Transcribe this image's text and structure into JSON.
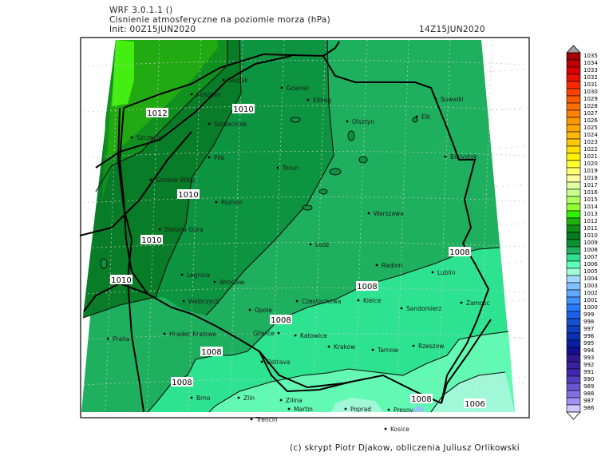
{
  "header": {
    "model": "WRF 3.0.1.1 ()",
    "title": "Cisnienie atmosferyczne na poziomie morza (hPa)",
    "init": "Init: 00Z15JUN2020",
    "valid_time": "14Z15JUN2020"
  },
  "footer": "(c) skrypt Piotr Djakow, obliczenia Juliusz Orlikowski",
  "map": {
    "field_colors": {
      "1013": "#44ee10",
      "1012": "#22aa12",
      "1011": "#10901e",
      "1010": "#087c26",
      "1009": "#0d9440",
      "1008": "#1eb05e",
      "1007": "#2ee38f",
      "1006": "#62f9b3",
      "1005": "#a0f8d8"
    },
    "contour_labels": [
      "1012",
      "1010",
      "1010",
      "1010",
      "1010",
      "1008",
      "1008",
      "1008",
      "1008",
      "1008",
      "1006",
      "1008"
    ],
    "cities": [
      "Slupsk",
      "Koszalin",
      "Szczecinek",
      "Szczecin",
      "Pila",
      "Torun",
      "Gorzow Wlkp.",
      "Poznan",
      "Gdansk",
      "Elblag",
      "Olsztyn",
      "Suwalki",
      "Elk",
      "Bialystok",
      "Warszawa",
      "Zielona Gora",
      "Legnica",
      "Wroclaw",
      "Walbrzych",
      "Opole",
      "Czestochowa",
      "Praha",
      "Hradec Kralowe",
      "Gliwice",
      "Katowice",
      "Ostrava",
      "Brno",
      "Zlin",
      "Zilina",
      "Martin",
      "Trencin",
      "Lodz",
      "Radom",
      "Lublin",
      "Kielce",
      "Sandomierz",
      "Zamosc",
      "Krakow",
      "Tarnow",
      "Rzeszow",
      "Poprad",
      "Presov",
      "Kosice"
    ]
  },
  "legend": {
    "labels": [
      "1035",
      "1034",
      "1033",
      "1032",
      "1031",
      "1030",
      "1029",
      "1028",
      "1027",
      "1026",
      "1025",
      "1024",
      "1023",
      "1022",
      "1021",
      "1020",
      "1019",
      "1018",
      "1017",
      "1016",
      "1015",
      "1014",
      "1013",
      "1012",
      "1011",
      "1010",
      "1009",
      "1008",
      "1007",
      "1006",
      "1005",
      "1004",
      "1003",
      "1002",
      "1001",
      "1000",
      "999",
      "998",
      "997",
      "996",
      "995",
      "994",
      "993",
      "992",
      "991",
      "990",
      "989",
      "988",
      "987",
      "986"
    ],
    "colors": [
      "#a00000",
      "#c00000",
      "#d80000",
      "#e81000",
      "#ff2800",
      "#ff4000",
      "#ff5a00",
      "#ff6e00",
      "#ff8200",
      "#ff9600",
      "#ffa600",
      "#ffb800",
      "#ffc800",
      "#ffe000",
      "#fff000",
      "#ffff30",
      "#ffff70",
      "#ffffa0",
      "#e0ffa0",
      "#c8ff90",
      "#b0ff60",
      "#90ff30",
      "#30f000",
      "#20b010",
      "#108c18",
      "#087a20",
      "#0c9030",
      "#20b060",
      "#30e090",
      "#60ffb8",
      "#a0ffd8",
      "#a0d8ff",
      "#80c0ff",
      "#60a8ff",
      "#4090ff",
      "#2878ff",
      "#2060e8",
      "#1850d0",
      "#1040c0",
      "#0830b0",
      "#0820a0",
      "#101090",
      "#301890",
      "#3820a0",
      "#4028b0",
      "#5040c0",
      "#6858d0",
      "#8070e0",
      "#a090f0",
      "#d0c8ff"
    ],
    "over_color": "#a0a0a0",
    "under_color": "#ffffff"
  }
}
